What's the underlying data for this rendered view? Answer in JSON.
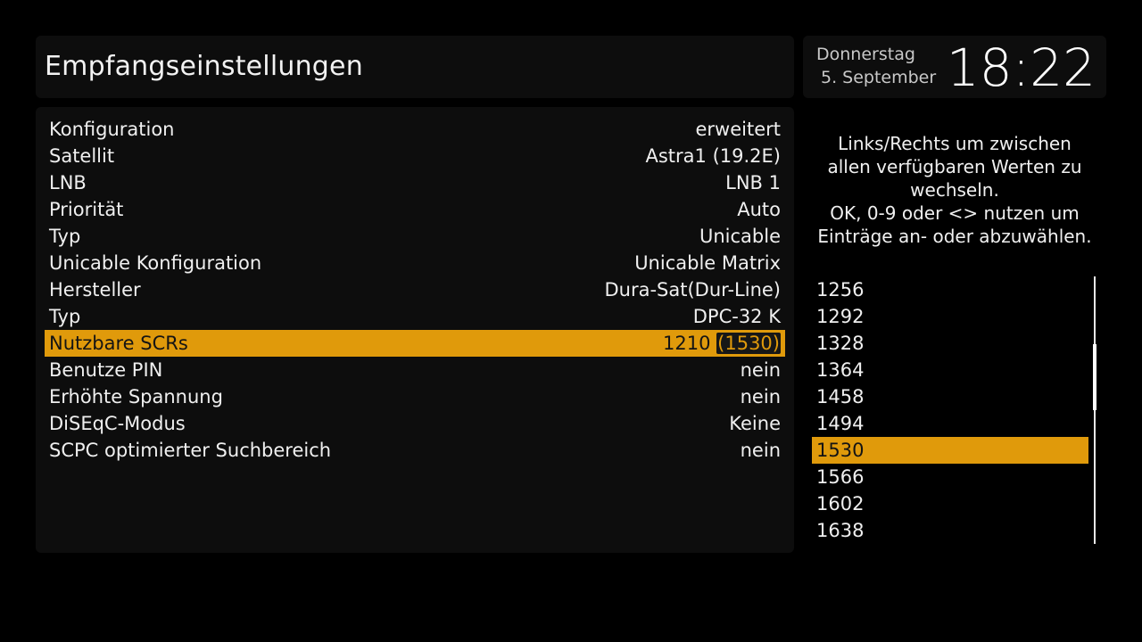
{
  "header": {
    "title": "Empfangseinstellungen"
  },
  "clock": {
    "day": "Donnerstag",
    "date": "5. September",
    "time": "18:22"
  },
  "settings": [
    {
      "label": "Konfiguration",
      "value": "erweitert"
    },
    {
      "label": "Satellit",
      "value": "Astra1 (19.2E)"
    },
    {
      "label": "LNB",
      "value": "LNB 1"
    },
    {
      "label": "Priorität",
      "value": "Auto"
    },
    {
      "label": "Typ",
      "value": "Unicable"
    },
    {
      "label": "Unicable Konfiguration",
      "value": "Unicable Matrix"
    },
    {
      "label": "Hersteller",
      "value": "Dura-Sat(Dur-Line)"
    },
    {
      "label": "Typ",
      "value": "DPC-32 K"
    },
    {
      "label": "Nutzbare SCRs",
      "value": "1210",
      "value_highlight": "(1530)"
    },
    {
      "label": "Benutze PIN",
      "value": "nein"
    },
    {
      "label": "Erhöhte Spannung",
      "value": "nein"
    },
    {
      "label": "DiSEqC-Modus",
      "value": "Keine"
    },
    {
      "label": "SCPC optimierter Suchbereich",
      "value": "nein"
    }
  ],
  "selected_setting_index": 8,
  "help": {
    "line1": "Links/Rechts um zwischen",
    "line2": "allen verfügbaren Werten zu",
    "line3": "wechseln.",
    "line4": "OK, 0-9 oder <> nutzen um",
    "line5": "Einträge an- oder abzuwählen."
  },
  "scr_list": {
    "items": [
      "1256",
      "1292",
      "1328",
      "1364",
      "1458",
      "1494",
      "1530",
      "1566",
      "1602",
      "1638"
    ],
    "selected_index": 6
  },
  "colors": {
    "accent": "#e09a0b",
    "background": "#000000",
    "panel": "#0d0d0d"
  }
}
